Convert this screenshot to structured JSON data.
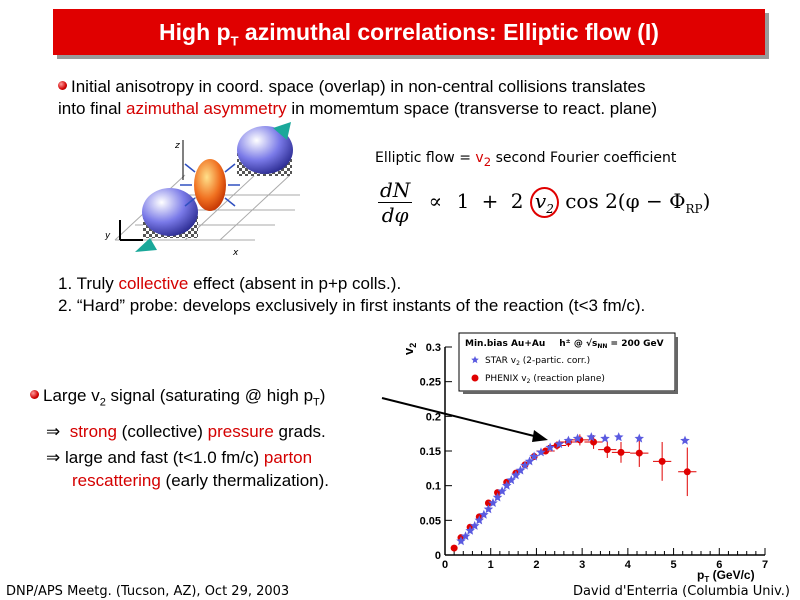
{
  "title": {
    "pre": "High p",
    "sub": "T",
    "post": " azimuthal correlations: Elliptic flow (I)"
  },
  "intro": {
    "line1": "Initial anisotropy in coord. space (overlap) in non-central collisions translates",
    "line2_pre": "into final ",
    "line2_red": "azimuthal asymmetry",
    "line2_post": " in momemtum space (transverse to react. plane)"
  },
  "diagram": {
    "axis_z": "z",
    "axis_y": "y",
    "axis_x": "x"
  },
  "elliptic": {
    "pre": "Elliptic flow = ",
    "v": "v",
    "sub": "2",
    "post": " second Fourier coefficient"
  },
  "formula": {
    "dN": "dN",
    "dphi": "dφ",
    "propto": "∝",
    "one": "1",
    "plus": "+",
    "two": "2",
    "v": "v",
    "v_sub": "2",
    "cos": "cos 2(φ − Φ",
    "rp": "RP",
    "close": ")"
  },
  "points": {
    "p1_pre": "1. Truly ",
    "p1_red": "collective",
    "p1_post": " effect (absent in p+p colls.).",
    "p2": "2. “Hard” probe: develops exclusively in first instants of the reaction (t<3 fm/c)."
  },
  "large": {
    "pre": "Large v",
    "sub": "2",
    "mid": " signal (saturating @ high p",
    "sub2": "T",
    "post": ")"
  },
  "arrow1": {
    "arrow": "⇒",
    "red1": "strong",
    "mid": " (collective) ",
    "red2": "pressure",
    "post": " grads."
  },
  "arrow2": {
    "arrow": "⇒",
    "pre": "large and fast (t<1.0 fm/c) ",
    "red": "parton"
  },
  "arrow3": {
    "red": "rescattering",
    "post": " (early thermalization)."
  },
  "legend": {
    "head": "Min.bias Au+Au",
    "head2": "h",
    "head3": " @ √s",
    "head3_sub": "NN",
    "head4": " = 200 GeV",
    "star": "STAR v",
    "star_sub": "2",
    "star_post": " (2-partic. corr.)",
    "phenix": "PHENIX v",
    "phenix_sub": "2",
    "phenix_post": " (reaction plane)"
  },
  "chart_data": {
    "type": "scatter",
    "xlabel": "p",
    "xlabel_sub": "T",
    "xlabel_unit": " (GeV/c)",
    "ylabel": "v",
    "ylabel_sub": "2",
    "xlim": [
      0,
      7
    ],
    "ylim": [
      0,
      0.3
    ],
    "x_ticks": [
      "0",
      "1",
      "2",
      "3",
      "4",
      "5",
      "6",
      "7"
    ],
    "y_ticks": [
      "0",
      "0.05",
      "0.1",
      "0.15",
      "0.2",
      "0.25",
      "0.3"
    ],
    "colors": {
      "star": "#5a5ae0",
      "phenix": "#e00000"
    },
    "series": [
      {
        "name": "STAR v2 (2-partic. corr.)",
        "points": [
          [
            0.35,
            0.02
          ],
          [
            0.45,
            0.027
          ],
          [
            0.55,
            0.035
          ],
          [
            0.65,
            0.042
          ],
          [
            0.75,
            0.05
          ],
          [
            0.85,
            0.058
          ],
          [
            0.95,
            0.066
          ],
          [
            1.05,
            0.075
          ],
          [
            1.15,
            0.083
          ],
          [
            1.25,
            0.092
          ],
          [
            1.35,
            0.1
          ],
          [
            1.45,
            0.108
          ],
          [
            1.55,
            0.115
          ],
          [
            1.65,
            0.122
          ],
          [
            1.75,
            0.129
          ],
          [
            1.85,
            0.135
          ],
          [
            1.95,
            0.142
          ],
          [
            2.1,
            0.148
          ],
          [
            2.3,
            0.155
          ],
          [
            2.5,
            0.16
          ],
          [
            2.7,
            0.165
          ],
          [
            2.9,
            0.168
          ],
          [
            3.2,
            0.17
          ],
          [
            3.5,
            0.168
          ],
          [
            3.8,
            0.17
          ],
          [
            4.25,
            0.168
          ],
          [
            5.25,
            0.165
          ]
        ]
      },
      {
        "name": "PHENIX v2 (reaction plane)",
        "points": [
          [
            0.2,
            0.01
          ],
          [
            0.35,
            0.025
          ],
          [
            0.55,
            0.04
          ],
          [
            0.75,
            0.055
          ],
          [
            0.95,
            0.075
          ],
          [
            1.15,
            0.09
          ],
          [
            1.35,
            0.105
          ],
          [
            1.55,
            0.118
          ],
          [
            1.75,
            0.13
          ],
          [
            1.95,
            0.142
          ],
          [
            2.2,
            0.15
          ],
          [
            2.45,
            0.158
          ],
          [
            2.7,
            0.163
          ],
          [
            2.95,
            0.166
          ],
          [
            3.25,
            0.163
          ],
          [
            3.55,
            0.152
          ],
          [
            3.85,
            0.148
          ],
          [
            4.25,
            0.147
          ],
          [
            4.75,
            0.135
          ],
          [
            5.3,
            0.12
          ]
        ],
        "errors": [
          0,
          0,
          0,
          0,
          0,
          0,
          0,
          0,
          0,
          0,
          0.005,
          0.006,
          0.007,
          0.008,
          0.01,
          0.012,
          0.015,
          0.02,
          0.028,
          0.035
        ]
      }
    ]
  },
  "footer": {
    "left": "DNP/APS Meetg. (Tucson, AZ), Oct 29, 2003",
    "right": "David d'Enterria (Columbia Univ.)"
  }
}
